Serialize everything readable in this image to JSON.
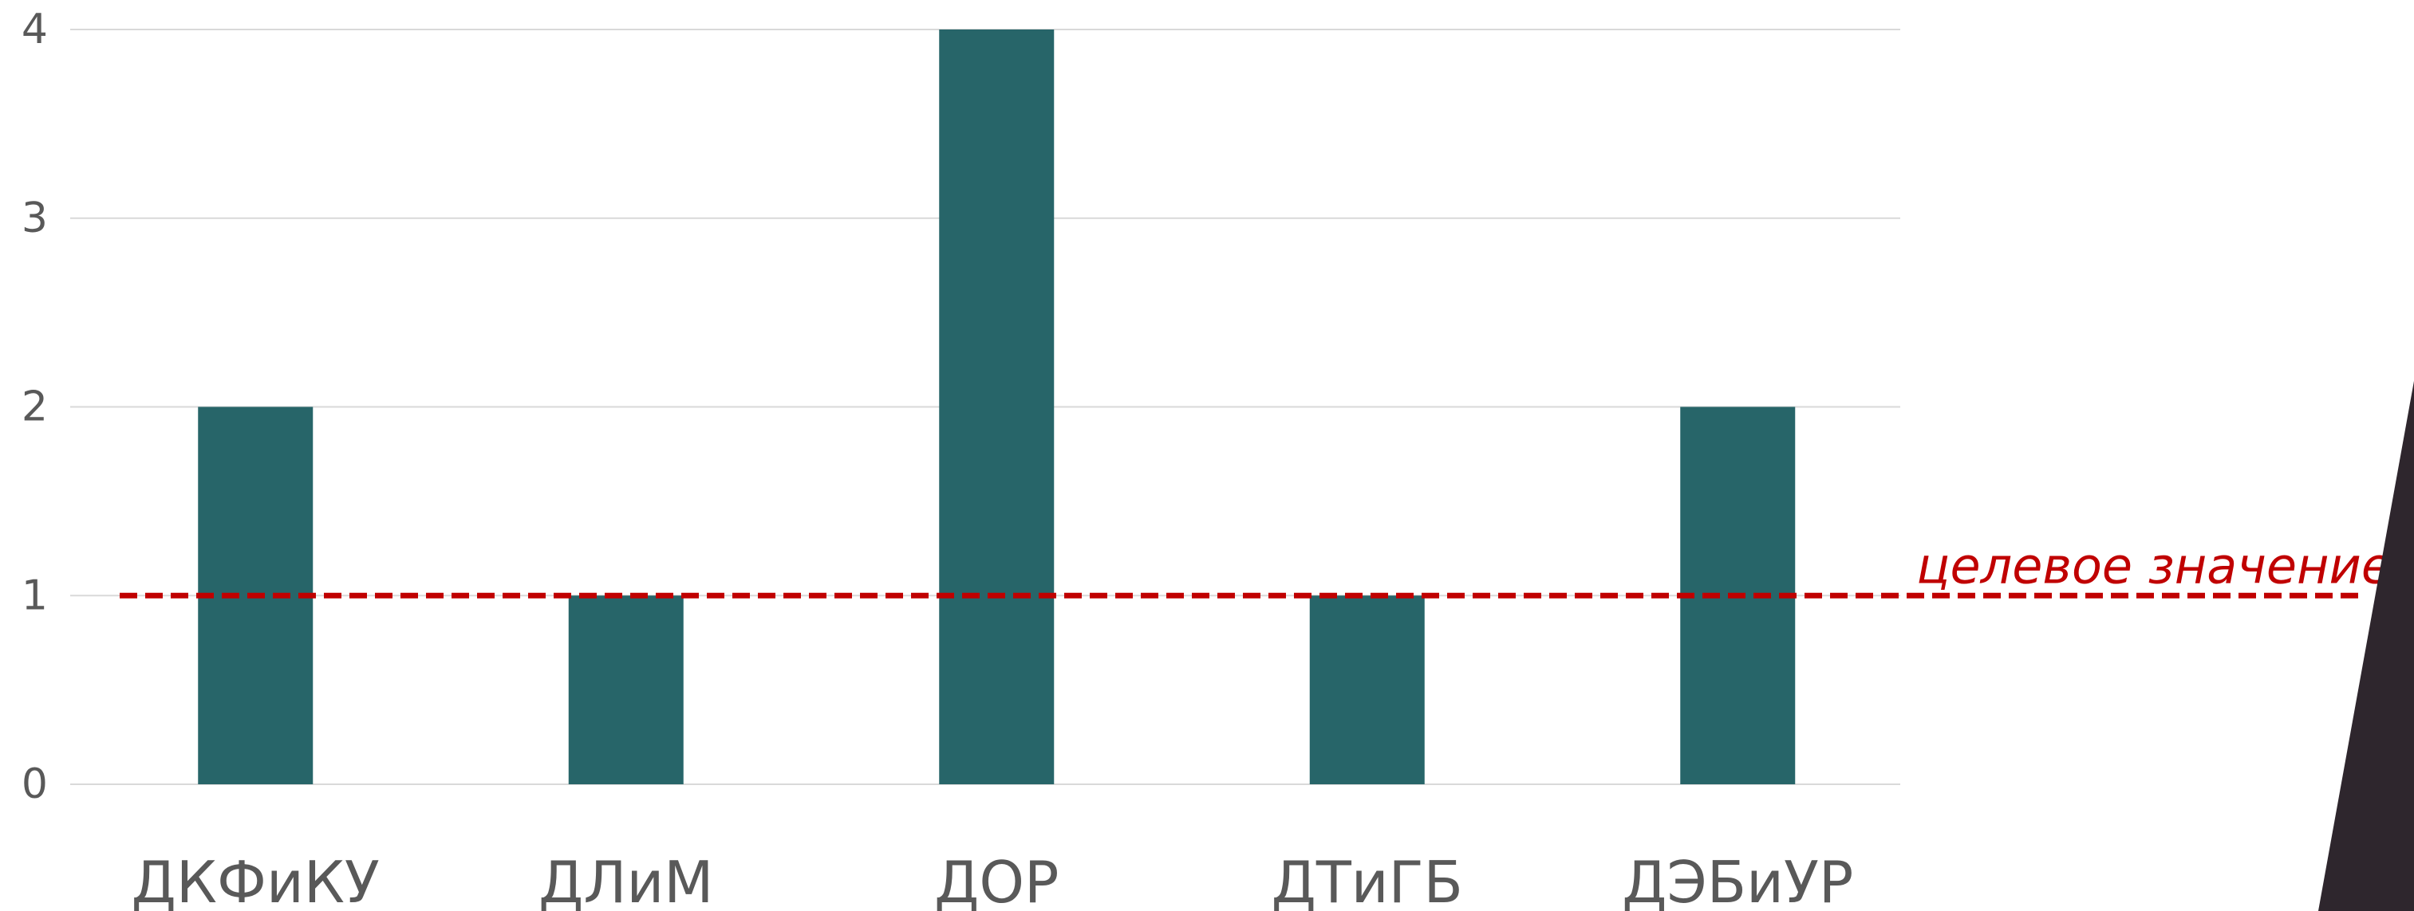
{
  "chart_data": {
    "type": "bar",
    "categories": [
      "ДКФиКУ",
      "ДЛиМ",
      "ДОР",
      "ДТиГБ",
      "ДЭБиУР"
    ],
    "values": [
      2,
      1,
      4,
      1,
      2
    ],
    "ylim": [
      0,
      4
    ],
    "yticks": [
      0,
      1,
      2,
      3,
      4
    ],
    "grid": true,
    "bar_color": "#276569",
    "target": {
      "value": 1,
      "label": "целевое значение",
      "color": "#C00000",
      "style": "dashed"
    }
  },
  "decoration": {
    "corner_shape_color": "#2E262D"
  }
}
